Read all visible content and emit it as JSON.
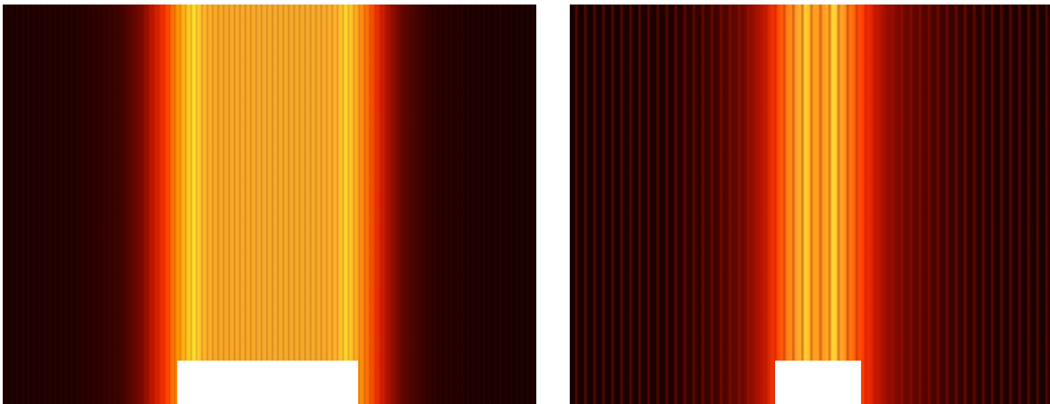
{
  "panels": [
    {
      "id": "left",
      "description_visible_text": ""
    },
    {
      "id": "right",
      "description_visible_text": ""
    }
  ],
  "colors": {
    "background": "#160000",
    "fringe_red": "#ff3a00",
    "fringe_yellow": "#ffd92a",
    "mask": "#ffffff"
  }
}
